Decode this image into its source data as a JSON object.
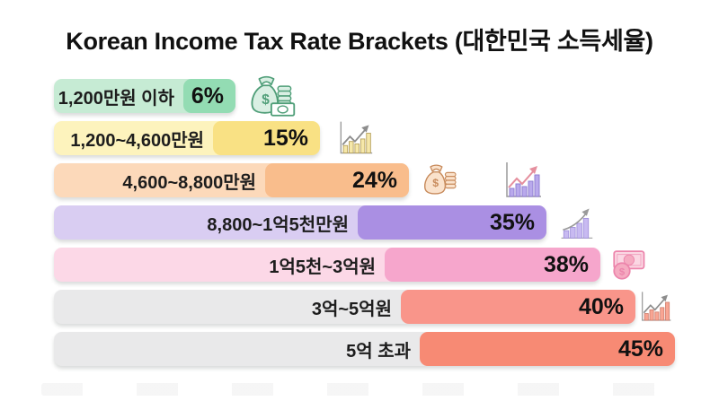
{
  "title": "Korean Income Tax Rate Brackets (대한민국 소득세율)",
  "chart_data": {
    "type": "bar",
    "orientation": "horizontal",
    "title": "Korean Income Tax Rate Brackets (대한민국 소득세율)",
    "xlabel": "",
    "ylabel": "",
    "legend": "none",
    "grid": false,
    "unit": "%",
    "value_range": [
      0,
      45
    ],
    "categories": [
      "1,200만원 이하",
      "1,200~4,600만원",
      "4,600~8,800만원",
      "8,800~1억5천만원",
      "1억5천~3억원",
      "3억~5억원",
      "5억 초과"
    ],
    "values": [
      6,
      15,
      24,
      35,
      38,
      40,
      45
    ],
    "value_labels": [
      "6%",
      "15%",
      "24%",
      "35%",
      "38%",
      "40%",
      "45%"
    ],
    "rows": [
      {
        "label": "1,200만원 이하",
        "value_label": "6%",
        "color_light": "#c6ebd4",
        "color_dark": "#93dcb3",
        "icons": [
          {
            "name": "money-bag-coins-banknote-icon",
            "stroke": "#4f9e78",
            "fill": "#d9efe3"
          }
        ]
      },
      {
        "label": "1,200~4,600만원",
        "value_label": "15%",
        "color_light": "#fdf3bd",
        "color_dark": "#f9e184",
        "icons": [
          {
            "name": "bar-chart-arrow-icon",
            "stroke": "#b7a25f",
            "fill": "#f6e8a9",
            "arrow": "#8d8d8d"
          }
        ]
      },
      {
        "label": "4,600~8,800만원",
        "value_label": "24%",
        "color_light": "#fcd9ba",
        "color_dark": "#f9bd8c",
        "icons": [
          {
            "name": "money-bag-coins-icon",
            "stroke": "#c88b5c",
            "fill": "#fae2cc"
          },
          {
            "name": "bar-chart-arrow-icon",
            "stroke": "#8f7ed2",
            "fill": "#b9a9ec",
            "arrow": "#e58f9e"
          }
        ]
      },
      {
        "label": "8,800~1억5천만원",
        "value_label": "35%",
        "color_light": "#d9cdf2",
        "color_dark": "#aa8fe3",
        "icons": [
          {
            "name": "growth-bars-arrow-icon",
            "stroke": "#a393dd",
            "fill": "#c8baf1",
            "arrow": "#9a9a9a"
          }
        ]
      },
      {
        "label": "1억5천~3억원",
        "value_label": "38%",
        "color_light": "#fcd8e7",
        "color_dark": "#f6a6cc",
        "icons": [
          {
            "name": "banknote-coin-icon",
            "stroke": "#ec84ab",
            "fill": "#fbd7e3",
            "coin": "#f5abc1"
          }
        ]
      },
      {
        "label": "3억~5억원",
        "value_label": "40%",
        "color_light": "#e9e9ea",
        "color_dark": "#f9958a",
        "icons": [
          {
            "name": "bar-chart-arrow-icon",
            "stroke": "#d07f6e",
            "fill": "#f9a593",
            "arrow": "#8d8d8d"
          }
        ]
      },
      {
        "label": "5억 초과",
        "value_label": "45%",
        "color_light": "#e9e9ea",
        "color_dark": "#f78a74",
        "icons": []
      }
    ]
  }
}
